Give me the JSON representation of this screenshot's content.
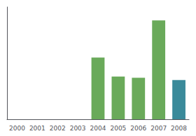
{
  "chart_data": {
    "type": "bar",
    "categories": [
      "2000",
      "2001",
      "2002",
      "2003",
      "2004",
      "2005",
      "2006",
      "2007",
      "2008"
    ],
    "values": [
      0,
      0,
      0,
      0,
      55,
      38,
      37,
      88,
      35
    ],
    "colors": [
      "#6aaa5a",
      "#6aaa5a",
      "#6aaa5a",
      "#6aaa5a",
      "#6aaa5a",
      "#6aaa5a",
      "#6aaa5a",
      "#6aaa5a",
      "#3a8a9a"
    ],
    "ylim": [
      0,
      100
    ],
    "grid": false,
    "tick_labels": "x"
  }
}
